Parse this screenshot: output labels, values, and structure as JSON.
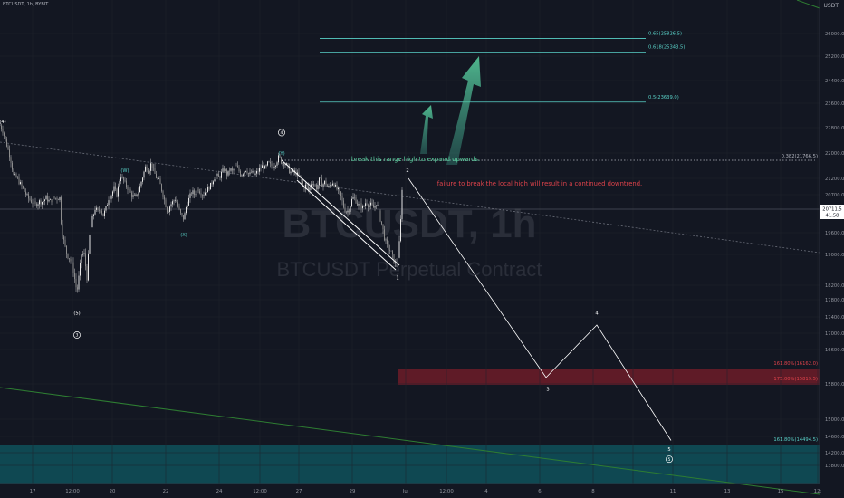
{
  "header": {
    "symbol_text": "BTCUSDT, 1h, BYBIT",
    "currency": "USDT"
  },
  "watermark": {
    "symbol": "BTCUSDT, 1h",
    "description": "BTCUSDT Perpetual Contract"
  },
  "colors": {
    "background": "#131722",
    "candle": "#c8c8c8",
    "fib": "#5ad2c8",
    "annotation_green": "#5ad2a0",
    "annotation_red": "#e0434b",
    "wave_path": "#ffffff",
    "red_zone": "#7a1e2a",
    "teal_zone": "#0f5a63",
    "trendline_green": "#2e7d32",
    "axis_text": "#9598a1"
  },
  "chart_data": {
    "type": "candlestick",
    "title": "BTCUSDT, 1h",
    "exchange": "BYBIT",
    "currency": "USDT",
    "ylim": [
      13600,
      26600
    ],
    "y_ticks": [
      26000.0,
      25200.0,
      24400.0,
      23600.0,
      22800.0,
      22000.0,
      21200.0,
      20700.0,
      19600.0,
      19000.0,
      18200.0,
      17800.0,
      17400.0,
      17000.0,
      16600.0,
      15800.0,
      15000.0,
      14600.0,
      14200.0,
      13800.0
    ],
    "y_tick_labels": [
      "26000.0",
      "25200.0",
      "24400.0",
      "23600.0",
      "22800.0",
      "22000.0",
      "21200.0",
      "20700.0",
      "19600.0",
      "19000.0",
      "18200.0",
      "17800.0",
      "17400.0",
      "17000.0",
      "16600.0",
      "15800.0",
      "15000.0",
      "14600.0",
      "14200.0",
      "13800.0"
    ],
    "x_tick_labels": [
      "17",
      "12:00",
      "20",
      "22",
      "24",
      "12:00",
      "27",
      "29",
      "Jul",
      "12:00",
      "4",
      "6",
      "8",
      "11",
      "13",
      "15",
      "12:"
    ],
    "last_price": {
      "value": 20711.5,
      "label": "20711.5",
      "countdown": "41:58"
    },
    "price_path": [
      [
        -0.5,
        22900
      ],
      [
        3,
        22700
      ],
      [
        7,
        22300
      ],
      [
        11,
        21900
      ],
      [
        15,
        21300
      ],
      [
        19,
        21200
      ],
      [
        23,
        21000
      ],
      [
        27,
        20800
      ],
      [
        31,
        20600
      ],
      [
        35,
        20500
      ],
      [
        39,
        20400
      ],
      [
        43,
        20500
      ],
      [
        47,
        20500
      ],
      [
        51,
        20600
      ],
      [
        55,
        20500
      ],
      [
        59,
        20600
      ],
      [
        63,
        20600
      ],
      [
        66,
        20600
      ],
      [
        68,
        19700
      ],
      [
        71,
        19300
      ],
      [
        74,
        19000
      ],
      [
        77,
        18900
      ],
      [
        80,
        18700
      ],
      [
        83,
        18300
      ],
      [
        85,
        18000
      ],
      [
        87,
        18400
      ],
      [
        90,
        19000
      ],
      [
        93,
        19000
      ],
      [
        96,
        18400
      ],
      [
        99,
        19500
      ],
      [
        102,
        20000
      ],
      [
        105,
        20300
      ],
      [
        108,
        20200
      ],
      [
        111,
        20300
      ],
      [
        114,
        20100
      ],
      [
        117,
        20300
      ],
      [
        120,
        20600
      ],
      [
        123,
        20700
      ],
      [
        126,
        20900
      ],
      [
        129,
        20700
      ],
      [
        133,
        21300
      ],
      [
        137,
        21100
      ],
      [
        141,
        20900
      ],
      [
        145,
        20700
      ],
      [
        149,
        20600
      ],
      [
        153,
        20800
      ],
      [
        157,
        21200
      ],
      [
        161,
        21600
      ],
      [
        164,
        21400
      ],
      [
        167,
        21700
      ],
      [
        170,
        21400
      ],
      [
        173,
        21200
      ],
      [
        176,
        21100
      ],
      [
        179,
        20800
      ],
      [
        182,
        20500
      ],
      [
        185,
        20200
      ],
      [
        188,
        20400
      ],
      [
        191,
        20500
      ],
      [
        194,
        20600
      ],
      [
        197,
        20300
      ],
      [
        200,
        20100
      ],
      [
        203,
        20000
      ],
      [
        206,
        20400
      ],
      [
        209,
        20600
      ],
      [
        212,
        20800
      ],
      [
        215,
        20700
      ],
      [
        218,
        20900
      ],
      [
        221,
        20800
      ],
      [
        224,
        20700
      ],
      [
        227,
        20800
      ],
      [
        230,
        20900
      ],
      [
        233,
        21000
      ],
      [
        236,
        21200
      ],
      [
        239,
        21300
      ],
      [
        242,
        21200
      ],
      [
        245,
        21400
      ],
      [
        248,
        21500
      ],
      [
        251,
        21300
      ],
      [
        254,
        21500
      ],
      [
        257,
        21400
      ],
      [
        260,
        21600
      ],
      [
        263,
        21500
      ],
      [
        266,
        21300
      ],
      [
        269,
        21400
      ],
      [
        272,
        21500
      ],
      [
        275,
        21300
      ],
      [
        278,
        21400
      ],
      [
        281,
        21300
      ],
      [
        284,
        21400
      ],
      [
        287,
        21500
      ],
      [
        290,
        21600
      ],
      [
        293,
        21500
      ],
      [
        296,
        21700
      ],
      [
        299,
        21600
      ],
      [
        302,
        21600
      ],
      [
        305,
        21700
      ],
      [
        308,
        21900
      ],
      [
        311,
        21700
      ],
      [
        314,
        21700
      ],
      [
        317,
        21600
      ],
      [
        320,
        21400
      ],
      [
        323,
        21400
      ],
      [
        326,
        21400
      ],
      [
        329,
        21300
      ],
      [
        332,
        21200
      ],
      [
        335,
        20900
      ],
      [
        338,
        21000
      ],
      [
        341,
        20800
      ],
      [
        344,
        21100
      ],
      [
        347,
        21000
      ],
      [
        350,
        20900
      ],
      [
        353,
        21200
      ],
      [
        356,
        21000
      ],
      [
        359,
        21100
      ],
      [
        362,
        20900
      ],
      [
        365,
        21000
      ],
      [
        368,
        21100
      ],
      [
        371,
        20900
      ],
      [
        374,
        20800
      ],
      [
        377,
        20600
      ],
      [
        380,
        20300
      ],
      [
        383,
        20200
      ],
      [
        386,
        20300
      ],
      [
        389,
        20600
      ],
      [
        392,
        20600
      ],
      [
        395,
        20400
      ],
      [
        398,
        20400
      ],
      [
        401,
        20300
      ],
      [
        404,
        20500
      ],
      [
        407,
        20400
      ],
      [
        410,
        20400
      ],
      [
        413,
        20300
      ],
      [
        416,
        20500
      ],
      [
        419,
        20100
      ],
      [
        422,
        19800
      ],
      [
        425,
        19400
      ],
      [
        428,
        19200
      ],
      [
        431,
        19100
      ],
      [
        434,
        18900
      ],
      [
        437,
        18700
      ],
      [
        440,
        19000
      ],
      [
        442,
        19600
      ],
      [
        443,
        20300
      ],
      [
        444,
        20900
      ],
      [
        445,
        21200
      ]
    ],
    "forecast_path": [
      [
        451,
        21200
      ],
      [
        603,
        15950
      ],
      [
        659,
        17200
      ],
      [
        741,
        14500
      ]
    ],
    "fib_levels": [
      {
        "label": "0.65(25826.5)",
        "value": 25826.5
      },
      {
        "label": "0.618(25343.5)",
        "value": 25343.5
      },
      {
        "label": "0.5(23639.0)",
        "value": 23639.0
      },
      {
        "label": "0.382(21766.5)",
        "value": 21766.5
      }
    ],
    "target_zones": [
      {
        "label": "161.80%(16162.0)",
        "value": 16162.0
      },
      {
        "label": "175.00%(15819.5)",
        "value": 15819.5
      },
      {
        "label": "161.80%(14494.5)",
        "value": 14494.5
      }
    ],
    "wave_labels": [
      {
        "text": "(4)",
        "x": 3,
        "y": 22950
      },
      {
        "text": "(W)",
        "x": 138,
        "y": 21400
      },
      {
        "text": "(X)",
        "x": 203,
        "y": 19500
      },
      {
        "text": "(Y)",
        "x": 311,
        "y": 21950
      },
      {
        "text": "(5)",
        "x": 85,
        "y": 17450
      },
      {
        "text": "3",
        "x": 85,
        "y": 16920,
        "circled": true
      },
      {
        "text": "4",
        "x": 311,
        "y": 22600,
        "circled": true
      },
      {
        "text": "1",
        "x": 439,
        "y": 18350
      },
      {
        "text": "2",
        "x": 450,
        "y": 21400
      },
      {
        "text": "3",
        "x": 605,
        "y": 15650
      },
      {
        "text": "4",
        "x": 659,
        "y": 17450
      },
      {
        "text": "5",
        "x": 739,
        "y": 14250
      },
      {
        "text": "5",
        "x": 739,
        "y": 13950,
        "circled": true
      }
    ],
    "annotations": [
      {
        "text": "break this range high to expand upwards.",
        "color": "green"
      },
      {
        "text": "failure to break the local high will result in a continued downtrend.",
        "color": "red"
      }
    ]
  }
}
